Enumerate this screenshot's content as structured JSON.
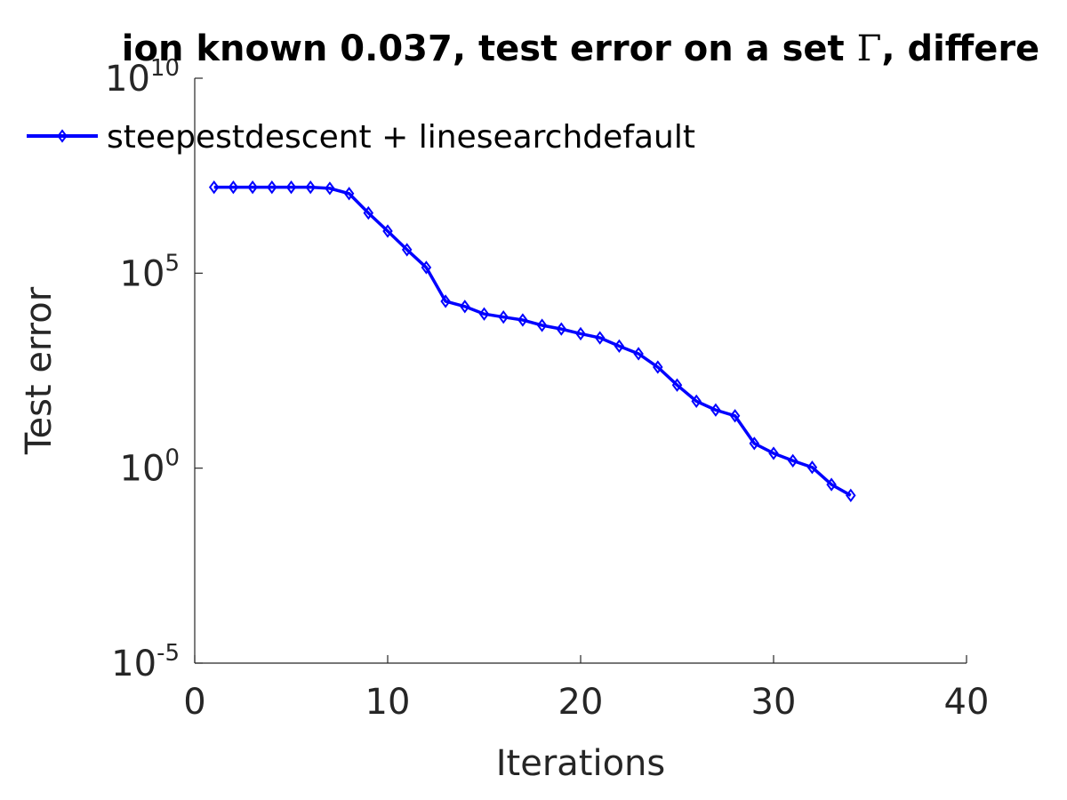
{
  "chart_data": {
    "type": "line",
    "title": {
      "prefix": "ion known 0.037, test error on a set ",
      "symbol": "Γ",
      "suffix": ", differe"
    },
    "xlabel": "Iterations",
    "ylabel": "Test error",
    "xlim": [
      0,
      40
    ],
    "ylim": [
      1e-05,
      10000000000.0
    ],
    "yscale": "log",
    "grid": false,
    "legend_position": "top-left",
    "x_ticks": [
      {
        "value": 0,
        "label": "0"
      },
      {
        "value": 10,
        "label": "10"
      },
      {
        "value": 20,
        "label": "20"
      },
      {
        "value": 30,
        "label": "30"
      },
      {
        "value": 40,
        "label": "40"
      }
    ],
    "y_ticks": [
      {
        "exponent": -5,
        "base": "10",
        "exp_label": "-5"
      },
      {
        "exponent": 0,
        "base": "10",
        "exp_label": "0"
      },
      {
        "exponent": 5,
        "base": "10",
        "exp_label": "5"
      },
      {
        "exponent": 10,
        "base": "10",
        "exp_label": "10"
      }
    ],
    "series": [
      {
        "name": "steepestdescent + linesearchdefault",
        "color": "#0000ff",
        "marker": "diamond",
        "x": [
          1,
          2,
          3,
          4,
          5,
          6,
          7,
          8,
          9,
          10,
          11,
          12,
          13,
          14,
          15,
          16,
          17,
          18,
          19,
          20,
          21,
          22,
          23,
          24,
          25,
          26,
          27,
          28,
          29,
          30,
          31,
          32,
          33,
          34
        ],
        "y": [
          16000000.0,
          16000000.0,
          16000000.0,
          16000000.0,
          16000000.0,
          16000000.0,
          15000000.0,
          11000000.0,
          3500000.0,
          1200000.0,
          400000.0,
          140000.0,
          19000.0,
          14000.0,
          9000.0,
          7500.0,
          6300.0,
          4600.0,
          3700.0,
          2800.0,
          2200.0,
          1350.0,
          860,
          390,
          135,
          52,
          31,
          22,
          4.3,
          2.4,
          1.55,
          1.05,
          0.38,
          0.2
        ]
      }
    ]
  }
}
